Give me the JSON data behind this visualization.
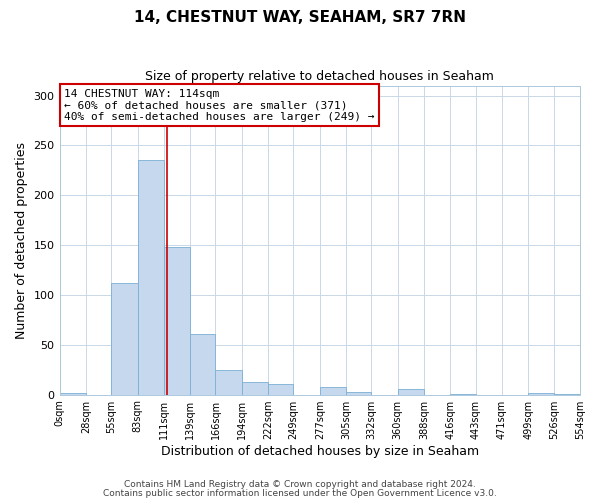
{
  "title": "14, CHESTNUT WAY, SEAHAM, SR7 7RN",
  "subtitle": "Size of property relative to detached houses in Seaham",
  "xlabel": "Distribution of detached houses by size in Seaham",
  "ylabel": "Number of detached properties",
  "bar_left_edges": [
    0,
    28,
    55,
    83,
    111,
    139,
    166,
    194,
    222,
    249,
    277,
    305,
    332,
    360,
    388,
    416,
    443,
    471,
    499,
    526
  ],
  "bar_widths": [
    28,
    27,
    28,
    28,
    28,
    27,
    28,
    28,
    27,
    28,
    28,
    27,
    28,
    28,
    28,
    27,
    28,
    28,
    27,
    28
  ],
  "bar_heights": [
    2,
    0,
    112,
    235,
    148,
    61,
    25,
    13,
    11,
    0,
    8,
    3,
    0,
    6,
    0,
    1,
    0,
    0,
    2,
    1
  ],
  "bar_color": "#c5d8ed",
  "bar_edgecolor": "#7bafd4",
  "tick_labels": [
    "0sqm",
    "28sqm",
    "55sqm",
    "83sqm",
    "111sqm",
    "139sqm",
    "166sqm",
    "194sqm",
    "222sqm",
    "249sqm",
    "277sqm",
    "305sqm",
    "332sqm",
    "360sqm",
    "388sqm",
    "416sqm",
    "443sqm",
    "471sqm",
    "499sqm",
    "526sqm",
    "554sqm"
  ],
  "property_line_x": 114,
  "property_line_color": "#cc0000",
  "ylim": [
    0,
    310
  ],
  "xlim": [
    0,
    554
  ],
  "yticks": [
    0,
    50,
    100,
    150,
    200,
    250,
    300
  ],
  "annotation_text": "14 CHESTNUT WAY: 114sqm\n← 60% of detached houses are smaller (371)\n40% of semi-detached houses are larger (249) →",
  "annotation_box_color": "#ffffff",
  "annotation_box_edgecolor": "#cc0000",
  "footnote1": "Contains HM Land Registry data © Crown copyright and database right 2024.",
  "footnote2": "Contains public sector information licensed under the Open Government Licence v3.0.",
  "background_color": "#ffffff",
  "grid_color": "#c8d8e8",
  "title_fontsize": 11,
  "subtitle_fontsize": 9,
  "ylabel_fontsize": 9,
  "xlabel_fontsize": 9,
  "tick_fontsize": 7,
  "annotation_fontsize": 8,
  "footnote_fontsize": 6.5
}
